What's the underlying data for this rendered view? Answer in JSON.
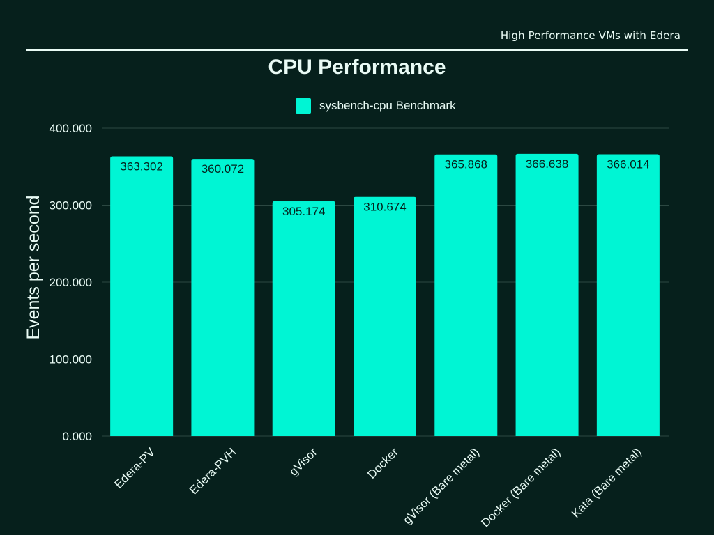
{
  "header": {
    "text": "High Performance VMs with Edera"
  },
  "colors": {
    "background": "#06201c",
    "bar": "#00f5d4",
    "text_light": "#e9fbf5",
    "grid": "#2c4842",
    "label_dark": "#04211c"
  },
  "chart_data": {
    "type": "bar",
    "title": "CPU Performance",
    "legend": {
      "entries": [
        "sysbench-cpu Benchmark"
      ],
      "placement": "top-center"
    },
    "categories": [
      "Edera-PV",
      "Edera-PVH",
      "gVisor",
      "Docker",
      "gVisor (Bare metal)",
      "Docker (Bare metal)",
      "Kata (Bare metal)"
    ],
    "series": [
      {
        "name": "sysbench-cpu Benchmark",
        "values": [
          363.302,
          360.072,
          305.174,
          310.674,
          365.868,
          366.638,
          366.014
        ]
      }
    ],
    "value_labels": [
      "363.302",
      "360.072",
      "305.174",
      "310.674",
      "365.868",
      "366.638",
      "366.014"
    ],
    "xlabel": "",
    "ylabel": "Events per second",
    "ylim": [
      0,
      400
    ],
    "yticks": [
      0,
      100,
      200,
      300,
      400
    ],
    "ytick_labels": [
      "0.000",
      "100.000",
      "200.000",
      "300.000",
      "400.000"
    ],
    "grid": true
  }
}
